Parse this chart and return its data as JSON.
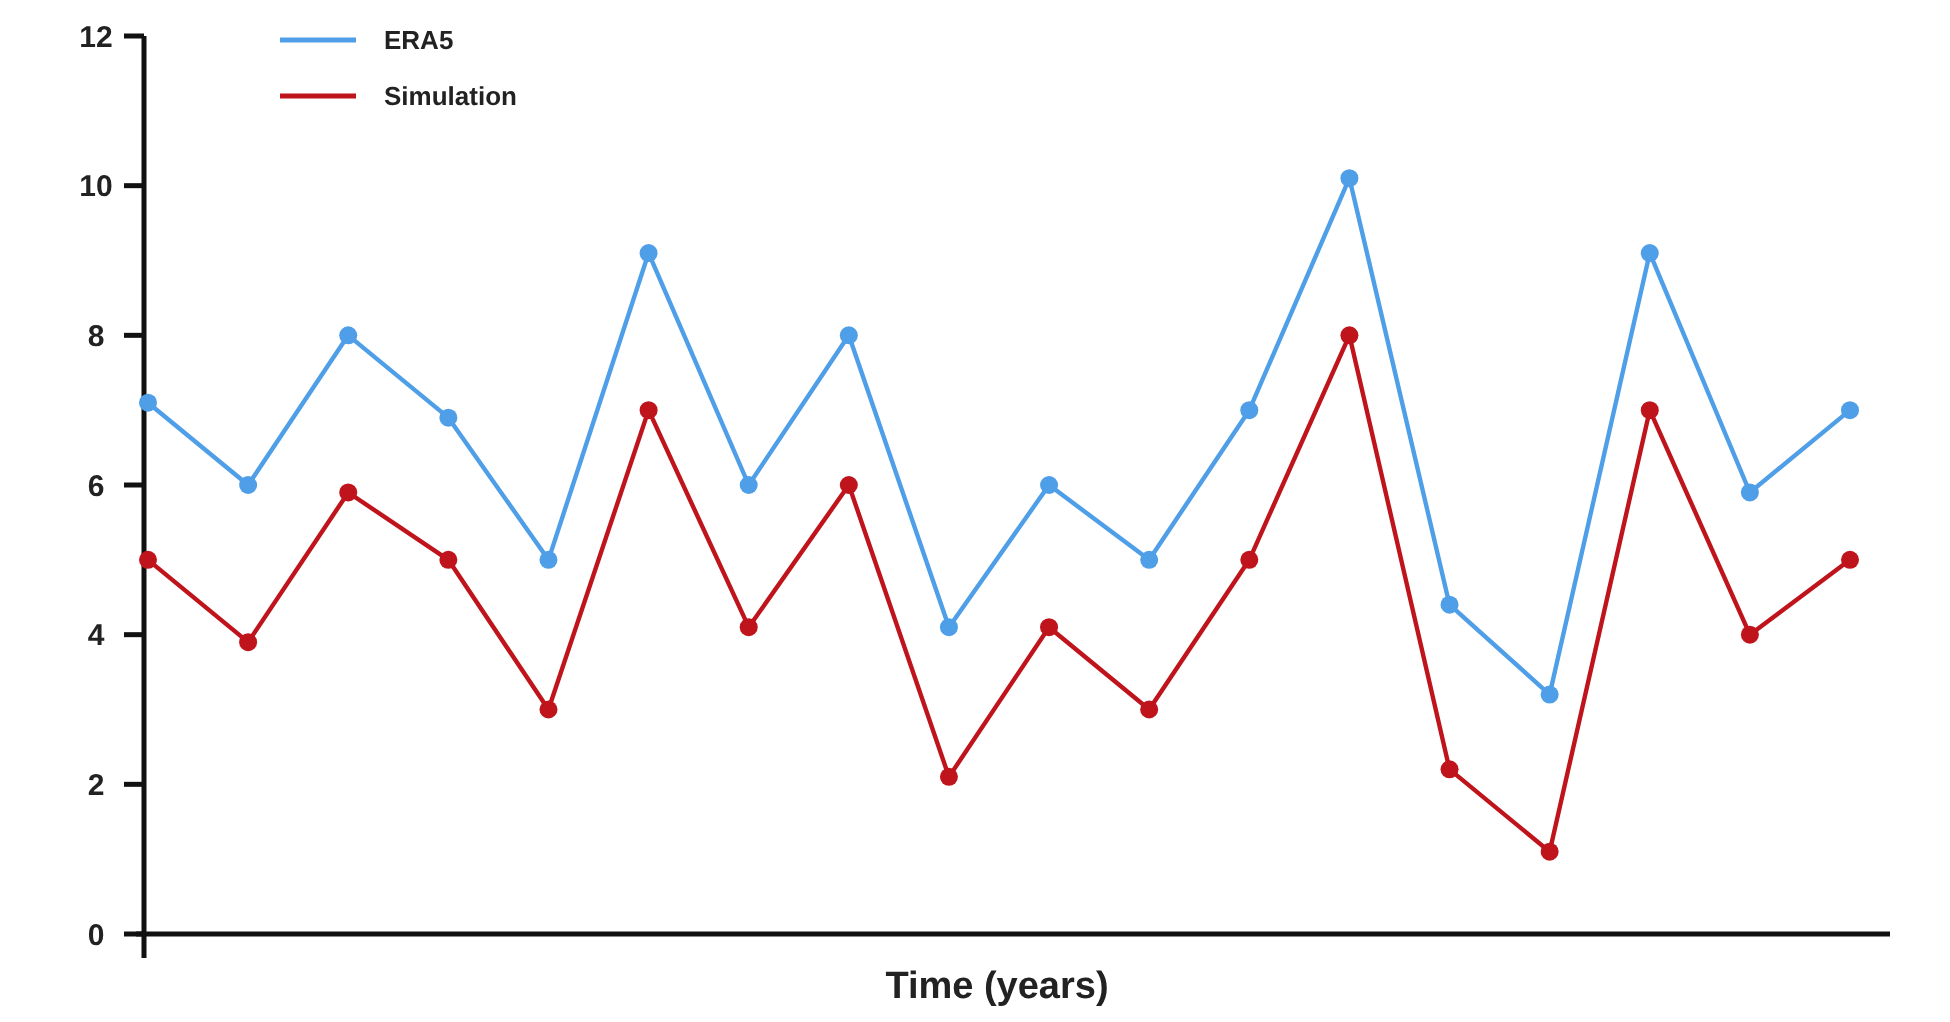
{
  "chart_data": {
    "type": "line",
    "xlabel": "Time (years)",
    "categories": [
      null,
      null,
      null,
      null,
      null,
      null,
      null,
      null,
      null,
      null,
      null,
      null,
      null,
      null,
      null,
      null,
      null,
      null
    ],
    "series": [
      {
        "name": "ERA5",
        "color": "#4f9ee8",
        "values": [
          7.1,
          6,
          8,
          6.9,
          5,
          9.1,
          6,
          8,
          4.1,
          6,
          5,
          7,
          10.1,
          4.4,
          3.2,
          9.1,
          5.9,
          7
        ]
      },
      {
        "name": "Simulation",
        "color": "#c0141c",
        "values": [
          5,
          3.9,
          5.9,
          5,
          3,
          7,
          4.1,
          6,
          2.1,
          4.1,
          3,
          5,
          8,
          2.2,
          1.1,
          7,
          4,
          5
        ]
      }
    ],
    "ylim": [
      0,
      12
    ],
    "yticks": [
      0,
      2,
      4,
      6,
      8,
      10,
      12
    ],
    "grid": false,
    "legend": "top left",
    "marker": "circle",
    "line_style": "solid"
  }
}
